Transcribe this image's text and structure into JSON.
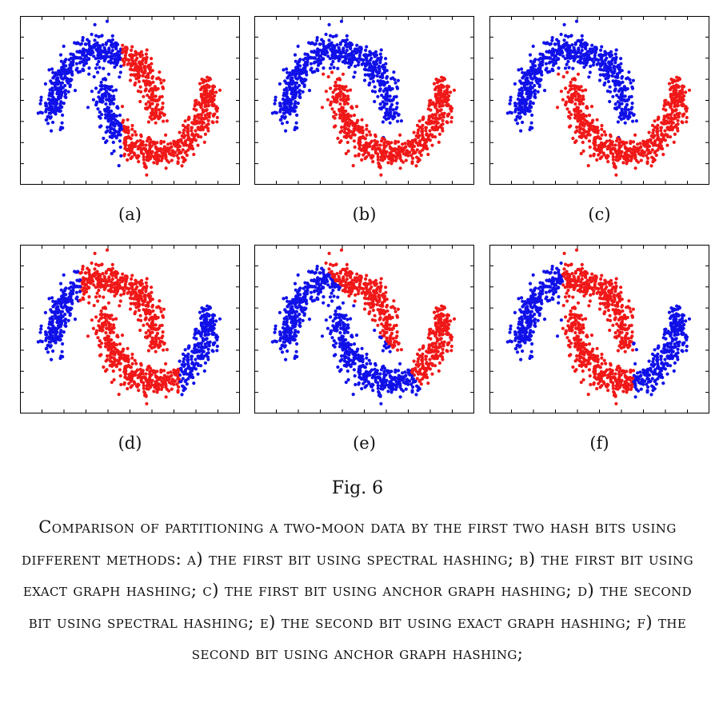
{
  "panels": [
    {
      "label": "(a)",
      "partition": "vertical-split",
      "left": "blue",
      "right": "red"
    },
    {
      "label": "(b)",
      "partition": "by-moon",
      "upper_moon": "blue",
      "lower_moon": "red"
    },
    {
      "label": "(c)",
      "partition": "by-moon",
      "upper_moon": "blue",
      "lower_moon": "red"
    },
    {
      "label": "(d)",
      "partition": "three-band",
      "outer": "blue",
      "middle": "red"
    },
    {
      "label": "(e)",
      "partition": "diagonal",
      "upper_right": "red",
      "lower_left": "blue"
    },
    {
      "label": "(f)",
      "partition": "three-band-shifted",
      "outer": "blue",
      "middle": "red"
    }
  ],
  "colors": {
    "class_blue": "#1010e8",
    "class_red": "#f01818",
    "frame": "#000000"
  },
  "figure_number": "Fig. 6",
  "caption": "Comparison of partitioning a two-moon data by the first two hash bits using different methods: a) the first bit using spectral hashing; b) the first bit using exact graph hashing; c) the first bit using anchor graph hashing; d) the second bit using spectral hashing; e) the second bit using exact graph hashing; f) the second bit using anchor graph hashing;"
}
